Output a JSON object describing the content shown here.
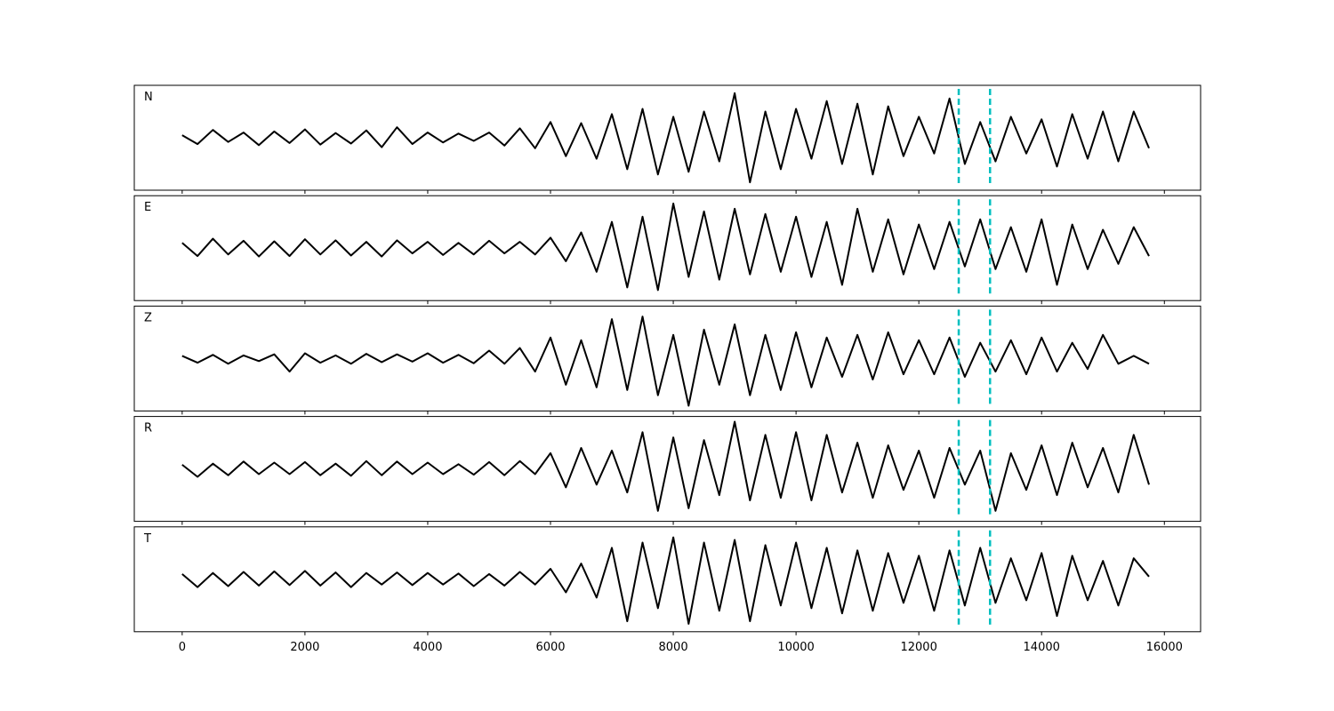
{
  "chart_data": [
    {
      "type": "line",
      "title": "N",
      "color": "#000000",
      "vline_color": "#00bfbf",
      "vlines": [
        12650,
        13160
      ],
      "xlim": [
        -780,
        16590
      ],
      "ylim": [
        -1,
        1
      ],
      "xticks": [
        0,
        2000,
        4000,
        6000,
        8000,
        10000,
        12000,
        14000,
        16000
      ],
      "show_tick_labels": false,
      "x": [
        0,
        250,
        500,
        750,
        1000,
        1250,
        1500,
        1750,
        2000,
        2250,
        2500,
        2750,
        3000,
        3250,
        3500,
        3750,
        4000,
        4250,
        4500,
        4750,
        5000,
        5250,
        5500,
        5750,
        6000,
        6250,
        6500,
        6750,
        7000,
        7250,
        7500,
        7750,
        8000,
        8250,
        8500,
        8750,
        9000,
        9250,
        9500,
        9750,
        10000,
        10250,
        10500,
        10750,
        11000,
        11250,
        11500,
        11750,
        12000,
        12250,
        12500,
        12750,
        13000,
        13250,
        13500,
        13750,
        14000,
        14250,
        14500,
        14750,
        15000,
        15250,
        15500,
        15750
      ],
      "values": [
        0.05,
        -0.12,
        0.15,
        -0.08,
        0.1,
        -0.14,
        0.12,
        -0.1,
        0.16,
        -0.13,
        0.09,
        -0.11,
        0.14,
        -0.18,
        0.2,
        -0.12,
        0.1,
        -0.09,
        0.08,
        -0.06,
        0.1,
        -0.15,
        0.18,
        -0.2,
        0.3,
        -0.35,
        0.28,
        -0.4,
        0.45,
        -0.6,
        0.55,
        -0.7,
        0.4,
        -0.65,
        0.5,
        -0.45,
        0.85,
        -0.85,
        0.5,
        -0.6,
        0.55,
        -0.4,
        0.7,
        -0.5,
        0.65,
        -0.7,
        0.6,
        -0.35,
        0.4,
        -0.3,
        0.75,
        -0.5,
        0.3,
        -0.45,
        0.4,
        -0.3,
        0.35,
        -0.55,
        0.45,
        -0.4,
        0.5,
        -0.45,
        0.5,
        -0.2
      ]
    },
    {
      "type": "line",
      "title": "E",
      "color": "#000000",
      "vline_color": "#00bfbf",
      "vlines": [
        12650,
        13160
      ],
      "xlim": [
        -780,
        16590
      ],
      "ylim": [
        -1,
        1
      ],
      "xticks": [
        0,
        2000,
        4000,
        6000,
        8000,
        10000,
        12000,
        14000,
        16000
      ],
      "show_tick_labels": false,
      "x": [
        0,
        250,
        500,
        750,
        1000,
        1250,
        1500,
        1750,
        2000,
        2250,
        2500,
        2750,
        3000,
        3250,
        3500,
        3750,
        4000,
        4250,
        4500,
        4750,
        5000,
        5250,
        5500,
        5750,
        6000,
        6250,
        6500,
        6750,
        7000,
        7250,
        7500,
        7750,
        8000,
        8250,
        8500,
        8750,
        9000,
        9250,
        9500,
        9750,
        10000,
        10250,
        10500,
        10750,
        11000,
        11250,
        11500,
        11750,
        12000,
        12250,
        12500,
        12750,
        13000,
        13250,
        13500,
        13750,
        14000,
        14250,
        14500,
        14750,
        15000,
        15250,
        15500,
        15750
      ],
      "values": [
        0.1,
        -0.15,
        0.18,
        -0.12,
        0.14,
        -0.16,
        0.13,
        -0.15,
        0.17,
        -0.12,
        0.15,
        -0.14,
        0.12,
        -0.16,
        0.15,
        -0.1,
        0.12,
        -0.13,
        0.1,
        -0.12,
        0.14,
        -0.1,
        0.12,
        -0.12,
        0.2,
        -0.25,
        0.3,
        -0.45,
        0.5,
        -0.75,
        0.6,
        -0.8,
        0.85,
        -0.55,
        0.7,
        -0.6,
        0.75,
        -0.5,
        0.65,
        -0.45,
        0.6,
        -0.55,
        0.5,
        -0.7,
        0.75,
        -0.45,
        0.55,
        -0.5,
        0.45,
        -0.4,
        0.5,
        -0.35,
        0.55,
        -0.4,
        0.4,
        -0.45,
        0.55,
        -0.7,
        0.45,
        -0.4,
        0.35,
        -0.3,
        0.4,
        -0.15
      ]
    },
    {
      "type": "line",
      "title": "Z",
      "color": "#000000",
      "vline_color": "#00bfbf",
      "vlines": [
        12650,
        13160
      ],
      "xlim": [
        -780,
        16590
      ],
      "ylim": [
        -1,
        1
      ],
      "xticks": [
        0,
        2000,
        4000,
        6000,
        8000,
        10000,
        12000,
        14000,
        16000
      ],
      "show_tick_labels": false,
      "x": [
        0,
        250,
        500,
        750,
        1000,
        1250,
        1500,
        1750,
        2000,
        2250,
        2500,
        2750,
        3000,
        3250,
        3500,
        3750,
        4000,
        4250,
        4500,
        4750,
        5000,
        5250,
        5500,
        5750,
        6000,
        6250,
        6500,
        6750,
        7000,
        7250,
        7500,
        7750,
        8000,
        8250,
        8500,
        8750,
        9000,
        9250,
        9500,
        9750,
        10000,
        10250,
        10500,
        10750,
        11000,
        11250,
        11500,
        11750,
        12000,
        12250,
        12500,
        12750,
        13000,
        13250,
        13500,
        13750,
        14000,
        14250,
        14500,
        14750,
        15000,
        15250,
        15500,
        15750
      ],
      "values": [
        0.05,
        -0.08,
        0.07,
        -0.1,
        0.06,
        -0.05,
        0.08,
        -0.25,
        0.1,
        -0.08,
        0.06,
        -0.1,
        0.09,
        -0.07,
        0.08,
        -0.06,
        0.1,
        -0.08,
        0.07,
        -0.09,
        0.15,
        -0.1,
        0.2,
        -0.25,
        0.4,
        -0.5,
        0.35,
        -0.55,
        0.75,
        -0.6,
        0.8,
        -0.7,
        0.45,
        -0.9,
        0.55,
        -0.5,
        0.65,
        -0.7,
        0.45,
        -0.6,
        0.5,
        -0.55,
        0.4,
        -0.35,
        0.45,
        -0.4,
        0.5,
        -0.3,
        0.35,
        -0.3,
        0.4,
        -0.35,
        0.3,
        -0.25,
        0.35,
        -0.3,
        0.4,
        -0.25,
        0.3,
        -0.2,
        0.45,
        -0.1,
        0.05,
        -0.1
      ]
    },
    {
      "type": "line",
      "title": "R",
      "color": "#000000",
      "vline_color": "#00bfbf",
      "vlines": [
        12650,
        13160
      ],
      "xlim": [
        -780,
        16590
      ],
      "ylim": [
        -1,
        1
      ],
      "xticks": [
        0,
        2000,
        4000,
        6000,
        8000,
        10000,
        12000,
        14000,
        16000
      ],
      "show_tick_labels": false,
      "x": [
        0,
        250,
        500,
        750,
        1000,
        1250,
        1500,
        1750,
        2000,
        2250,
        2500,
        2750,
        3000,
        3250,
        3500,
        3750,
        4000,
        4250,
        4500,
        4750,
        5000,
        5250,
        5500,
        5750,
        6000,
        6250,
        6500,
        6750,
        7000,
        7250,
        7500,
        7750,
        8000,
        8250,
        8500,
        8750,
        9000,
        9250,
        9500,
        9750,
        10000,
        10250,
        10500,
        10750,
        11000,
        11250,
        11500,
        11750,
        12000,
        12250,
        12500,
        12750,
        13000,
        13250,
        13500,
        13750,
        14000,
        14250,
        14500,
        14750,
        15000,
        15250,
        15500,
        15750
      ],
      "values": [
        0.08,
        -0.15,
        0.1,
        -0.12,
        0.14,
        -0.1,
        0.12,
        -0.1,
        0.13,
        -0.12,
        0.1,
        -0.13,
        0.15,
        -0.12,
        0.14,
        -0.1,
        0.12,
        -0.1,
        0.09,
        -0.11,
        0.13,
        -0.12,
        0.15,
        -0.1,
        0.3,
        -0.35,
        0.4,
        -0.3,
        0.35,
        -0.45,
        0.7,
        -0.8,
        0.6,
        -0.75,
        0.55,
        -0.5,
        0.9,
        -0.6,
        0.65,
        -0.55,
        0.7,
        -0.6,
        0.65,
        -0.45,
        0.5,
        -0.55,
        0.45,
        -0.4,
        0.35,
        -0.55,
        0.4,
        -0.3,
        0.35,
        -0.8,
        0.3,
        -0.4,
        0.45,
        -0.5,
        0.5,
        -0.35,
        0.4,
        -0.45,
        0.65,
        -0.3
      ]
    },
    {
      "type": "line",
      "title": "T",
      "color": "#000000",
      "vline_color": "#00bfbf",
      "vlines": [
        12650,
        13160
      ],
      "xlim": [
        -780,
        16590
      ],
      "ylim": [
        -1,
        1
      ],
      "xticks": [
        0,
        2000,
        4000,
        6000,
        8000,
        10000,
        12000,
        14000,
        16000
      ],
      "show_tick_labels": true,
      "x": [
        0,
        250,
        500,
        750,
        1000,
        1250,
        1500,
        1750,
        2000,
        2250,
        2500,
        2750,
        3000,
        3250,
        3500,
        3750,
        4000,
        4250,
        4500,
        4750,
        5000,
        5250,
        5500,
        5750,
        6000,
        6250,
        6500,
        6750,
        7000,
        7250,
        7500,
        7750,
        8000,
        8250,
        8500,
        8750,
        9000,
        9250,
        9500,
        9750,
        10000,
        10250,
        10500,
        10750,
        11000,
        11250,
        11500,
        11750,
        12000,
        12250,
        12500,
        12750,
        13000,
        13250,
        13500,
        13750,
        14000,
        14250,
        14500,
        14750,
        15000,
        15250,
        15500,
        15750
      ],
      "values": [
        0.1,
        -0.15,
        0.12,
        -0.13,
        0.14,
        -0.12,
        0.15,
        -0.11,
        0.16,
        -0.12,
        0.13,
        -0.15,
        0.12,
        -0.1,
        0.13,
        -0.11,
        0.12,
        -0.1,
        0.11,
        -0.13,
        0.1,
        -0.12,
        0.14,
        -0.1,
        0.2,
        -0.25,
        0.3,
        -0.35,
        0.6,
        -0.8,
        0.7,
        -0.55,
        0.8,
        -0.85,
        0.7,
        -0.6,
        0.75,
        -0.8,
        0.65,
        -0.5,
        0.7,
        -0.55,
        0.6,
        -0.65,
        0.55,
        -0.6,
        0.5,
        -0.45,
        0.45,
        -0.6,
        0.55,
        -0.5,
        0.6,
        -0.45,
        0.4,
        -0.4,
        0.5,
        -0.7,
        0.45,
        -0.4,
        0.35,
        -0.5,
        0.4,
        0.05
      ]
    }
  ]
}
